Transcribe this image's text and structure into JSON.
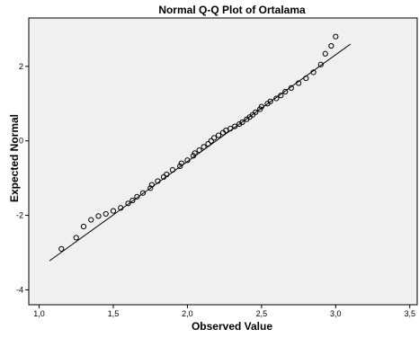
{
  "chart_data": {
    "type": "scatter",
    "title": "Normal Q-Q Plot of Ortalama",
    "xlabel": "Observed Value",
    "ylabel": "Expected Normal",
    "xlim": [
      0.93,
      3.55
    ],
    "ylim": [
      -4.4,
      3.3
    ],
    "x_ticks": [
      1.0,
      1.5,
      2.0,
      2.5,
      3.0,
      3.5
    ],
    "x_tick_labels": [
      "1,0",
      "1,5",
      "2,0",
      "2,5",
      "3,0",
      "3,5"
    ],
    "y_ticks": [
      -4,
      -2,
      0,
      2
    ],
    "y_tick_labels": [
      "-4",
      "-2",
      "0",
      "2"
    ],
    "grid": false,
    "legend": "none",
    "colors": {
      "plot_background": "#f0f0f0",
      "marker_edge": "#000000",
      "line": "#000000"
    },
    "reference_line": {
      "x": [
        1.07,
        3.1
      ],
      "y": [
        -3.22,
        2.6
      ]
    },
    "series": [
      {
        "marker": "open-circle",
        "points": [
          [
            1.15,
            -2.9
          ],
          [
            1.25,
            -2.6
          ],
          [
            1.3,
            -2.3
          ],
          [
            1.35,
            -2.12
          ],
          [
            1.4,
            -2.02
          ],
          [
            1.45,
            -1.96
          ],
          [
            1.5,
            -1.88
          ],
          [
            1.55,
            -1.8
          ],
          [
            1.6,
            -1.68
          ],
          [
            1.63,
            -1.6
          ],
          [
            1.66,
            -1.5
          ],
          [
            1.7,
            -1.4
          ],
          [
            1.75,
            -1.27
          ],
          [
            1.76,
            -1.18
          ],
          [
            1.8,
            -1.08
          ],
          [
            1.84,
            -0.97
          ],
          [
            1.86,
            -0.9
          ],
          [
            1.9,
            -0.78
          ],
          [
            1.95,
            -0.68
          ],
          [
            1.96,
            -0.6
          ],
          [
            2.0,
            -0.52
          ],
          [
            2.04,
            -0.4
          ],
          [
            2.05,
            -0.33
          ],
          [
            2.08,
            -0.25
          ],
          [
            2.11,
            -0.16
          ],
          [
            2.14,
            -0.08
          ],
          [
            2.16,
            0.0
          ],
          [
            2.18,
            0.08
          ],
          [
            2.21,
            0.15
          ],
          [
            2.24,
            0.22
          ],
          [
            2.26,
            0.28
          ],
          [
            2.29,
            0.33
          ],
          [
            2.32,
            0.39
          ],
          [
            2.35,
            0.45
          ],
          [
            2.37,
            0.5
          ],
          [
            2.4,
            0.58
          ],
          [
            2.42,
            0.64
          ],
          [
            2.44,
            0.7
          ],
          [
            2.46,
            0.77
          ],
          [
            2.49,
            0.85
          ],
          [
            2.5,
            0.92
          ],
          [
            2.54,
            1.0
          ],
          [
            2.56,
            1.06
          ],
          [
            2.6,
            1.14
          ],
          [
            2.63,
            1.22
          ],
          [
            2.66,
            1.32
          ],
          [
            2.7,
            1.42
          ],
          [
            2.75,
            1.55
          ],
          [
            2.8,
            1.68
          ],
          [
            2.85,
            1.84
          ],
          [
            2.9,
            2.05
          ],
          [
            2.93,
            2.34
          ],
          [
            2.97,
            2.55
          ],
          [
            3.0,
            2.8
          ]
        ]
      }
    ]
  }
}
